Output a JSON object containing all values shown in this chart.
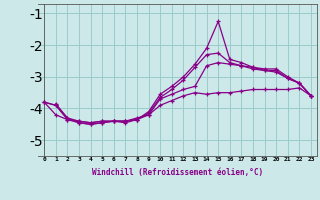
{
  "xlabel": "Windchill (Refroidissement éolien,°C)",
  "background_color": "#cce8e8",
  "line_color": "#880088",
  "grid_color": "#99cccc",
  "xlim": [
    -0.5,
    23.5
  ],
  "ylim": [
    -5.5,
    -0.7
  ],
  "yticks": [
    -5,
    -4,
    -3,
    -2,
    -1
  ],
  "xticks": [
    0,
    1,
    2,
    3,
    4,
    5,
    6,
    7,
    8,
    9,
    10,
    11,
    12,
    13,
    14,
    15,
    16,
    17,
    18,
    19,
    20,
    21,
    22,
    23
  ],
  "series": [
    [
      0,
      -3.8,
      1,
      -4.2,
      2,
      -4.35,
      3,
      -4.4,
      4,
      -4.45,
      5,
      -4.4,
      6,
      -4.4,
      7,
      -4.4,
      8,
      -4.3,
      9,
      -4.2,
      10,
      -3.9,
      11,
      -3.75,
      12,
      -3.6,
      13,
      -3.5,
      14,
      -3.55,
      15,
      -3.5,
      16,
      -3.5,
      17,
      -3.45,
      18,
      -3.4,
      19,
      -3.4,
      20,
      -3.4,
      21,
      -3.4,
      22,
      -3.35,
      23,
      -3.6
    ],
    [
      1,
      -3.85,
      2,
      -4.3,
      3,
      -4.4,
      4,
      -4.45,
      5,
      -4.4,
      6,
      -4.4,
      7,
      -4.4,
      8,
      -4.35,
      9,
      -4.2,
      10,
      -3.7,
      11,
      -3.55,
      12,
      -3.4,
      13,
      -3.3,
      14,
      -2.65,
      15,
      -2.55,
      16,
      -2.6,
      17,
      -2.65,
      18,
      -2.7,
      19,
      -2.75,
      20,
      -2.75,
      21,
      -3.0,
      22,
      -3.2,
      23,
      -3.6
    ],
    [
      0,
      -3.8,
      1,
      -3.9,
      2,
      -4.3,
      3,
      -4.45,
      4,
      -4.5,
      5,
      -4.45,
      6,
      -4.4,
      7,
      -4.45,
      8,
      -4.35,
      9,
      -4.15,
      10,
      -3.65,
      11,
      -3.4,
      12,
      -3.1,
      13,
      -2.7,
      14,
      -2.3,
      15,
      -2.25,
      16,
      -2.55,
      17,
      -2.65,
      18,
      -2.75,
      19,
      -2.8,
      20,
      -2.8,
      21,
      -3.05,
      22,
      -3.2,
      23,
      -3.6
    ],
    [
      0,
      -3.8,
      1,
      -3.9,
      2,
      -4.35,
      3,
      -4.45,
      4,
      -4.5,
      5,
      -4.45,
      6,
      -4.4,
      7,
      -4.4,
      8,
      -4.35,
      9,
      -4.1,
      10,
      -3.55,
      11,
      -3.3,
      12,
      -3.0,
      13,
      -2.6,
      14,
      -2.1,
      15,
      -1.25,
      16,
      -2.45,
      17,
      -2.55,
      18,
      -2.7,
      19,
      -2.8,
      20,
      -2.85,
      21,
      -3.05,
      22,
      -3.2,
      23,
      -3.6
    ]
  ]
}
